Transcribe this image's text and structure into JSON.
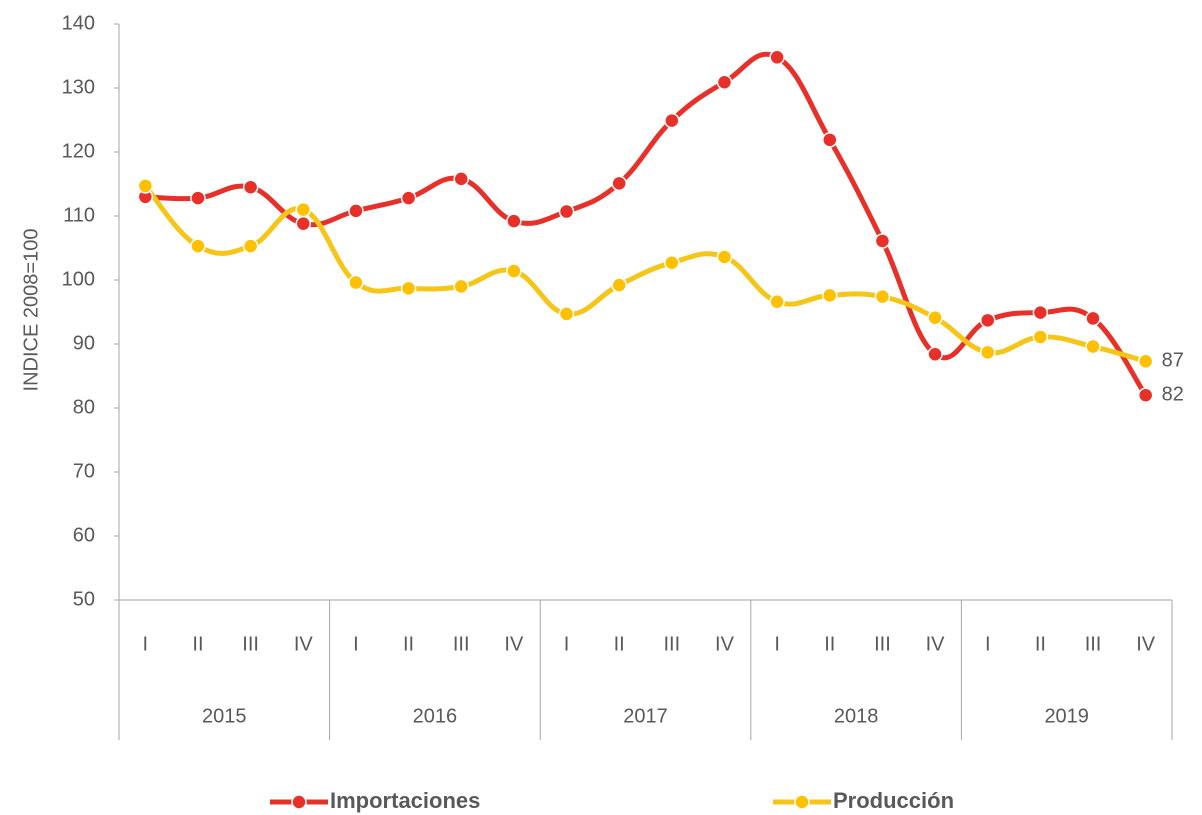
{
  "chart_data": {
    "type": "line",
    "y_label": "INDICE  2008=100",
    "categories": [
      "I",
      "II",
      "III",
      "IV",
      "I",
      "II",
      "III",
      "IV",
      "I",
      "II",
      "III",
      "IV",
      "I",
      "II",
      "III",
      "IV",
      "I",
      "II",
      "III",
      "IV"
    ],
    "groups": [
      "2015",
      "2016",
      "2017",
      "2018",
      "2019"
    ],
    "series": [
      {
        "name": "Importaciones",
        "color": "#e8302a",
        "values": [
          113,
          112.8,
          114.5,
          108.8,
          110.8,
          112.8,
          115.8,
          109.2,
          110.7,
          115.1,
          124.9,
          130.9,
          134.8,
          121.9,
          106.1,
          88.4,
          93.7,
          94.9,
          94,
          82
        ],
        "value_labels": [
          null,
          null,
          null,
          null,
          null,
          null,
          null,
          null,
          null,
          null,
          null,
          null,
          null,
          null,
          null,
          null,
          null,
          null,
          null,
          "82"
        ]
      },
      {
        "name": "Producción",
        "color": "#f5c518",
        "values": [
          114.7,
          105.3,
          105.3,
          111,
          99.6,
          98.7,
          99,
          101.4,
          94.7,
          99.2,
          102.7,
          103.6,
          96.6,
          97.6,
          97.4,
          94.1,
          88.7,
          91.1,
          89.6,
          87.3
        ],
        "value_labels": [
          null,
          null,
          null,
          null,
          null,
          null,
          null,
          null,
          null,
          null,
          null,
          null,
          null,
          null,
          null,
          null,
          null,
          null,
          null,
          "87"
        ]
      }
    ],
    "ylim": [
      50,
      140
    ],
    "yticks": [
      50,
      60,
      70,
      80,
      90,
      100,
      110,
      120,
      130,
      140
    ],
    "grid": false,
    "legend": "bottom"
  }
}
